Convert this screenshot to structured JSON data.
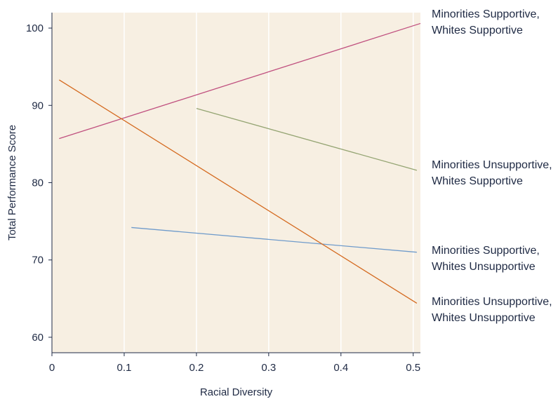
{
  "chart_data": {
    "type": "line",
    "title": "",
    "xlabel": "Racial Diversity",
    "ylabel": "Total Performance Score",
    "xlim": [
      0,
      0.51
    ],
    "ylim": [
      58,
      102
    ],
    "x_ticks": [
      "0",
      "0.1",
      "0.2",
      "0.3",
      "0.4",
      "0.5"
    ],
    "x_tick_values": [
      0,
      0.1,
      0.2,
      0.3,
      0.4,
      0.5
    ],
    "y_ticks": [
      "60",
      "70",
      "80",
      "90",
      "100"
    ],
    "y_tick_values": [
      60,
      70,
      80,
      90,
      100
    ],
    "grid": "vertical",
    "background_color": "#f7efe2",
    "series": [
      {
        "name": "Minorities Supportive, Whites Supportive",
        "label_lines": [
          "Minorities Supportive,",
          "Whites Supportive"
        ],
        "color": "#c0507f",
        "x": [
          0.01,
          0.51
        ],
        "y": [
          85.7,
          100.6
        ]
      },
      {
        "name": "Minorities Unsupportive, Whites Supportive",
        "label_lines": [
          "Minorities Unsupportive,",
          "Whites Supportive"
        ],
        "color": "#94a472",
        "x": [
          0.2,
          0.505
        ],
        "y": [
          89.6,
          81.6
        ]
      },
      {
        "name": "Minorities Supportive, Whites Unsupportive",
        "label_lines": [
          "Minorities Supportive,",
          "Whites Unsupportive"
        ],
        "color": "#6f9bcb",
        "x": [
          0.11,
          0.505
        ],
        "y": [
          74.2,
          71.0
        ]
      },
      {
        "name": "Minorities Unsupportive, Whites Unsupportive",
        "label_lines": [
          "Minorities Unsupportive,",
          "Whites Unsupportive"
        ],
        "color": "#d4691e",
        "x": [
          0.01,
          0.505
        ],
        "y": [
          93.3,
          64.4
        ]
      }
    ]
  }
}
